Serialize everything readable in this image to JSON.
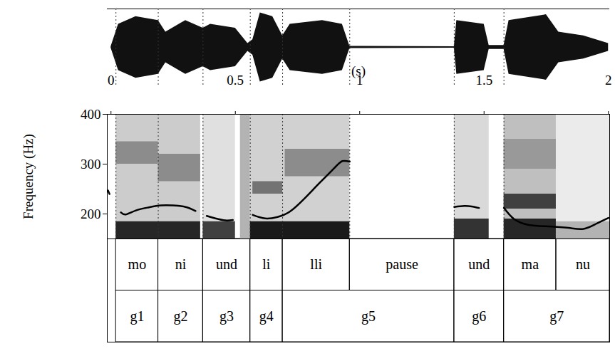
{
  "chart_data": {
    "type": "speech_annotation",
    "x_label": "(s)",
    "xlim": [
      -0.015,
      2.005
    ],
    "xticks": [
      0,
      0.5,
      1,
      1.5,
      2
    ],
    "y_label": "Frequency (Hz)",
    "ylim": [
      150,
      400
    ],
    "yticks": [
      200,
      300,
      400
    ],
    "waveform": {
      "ylim": [
        -1,
        1
      ],
      "x": [
        0.0,
        0.03,
        0.1,
        0.19,
        0.22,
        0.3,
        0.37,
        0.4,
        0.5,
        0.55,
        0.57,
        0.6,
        0.65,
        0.69,
        0.72,
        0.85,
        0.93,
        0.96,
        1.38,
        1.39,
        1.5,
        1.52,
        1.58,
        1.6,
        1.75,
        1.8,
        1.9,
        2.0
      ],
      "upper": [
        0.02,
        0.6,
        0.8,
        0.7,
        0.4,
        0.7,
        0.5,
        0.6,
        0.5,
        0.1,
        0.2,
        0.9,
        0.8,
        0.3,
        0.6,
        0.7,
        0.6,
        0.03,
        0.02,
        0.7,
        0.6,
        0.05,
        0.05,
        0.7,
        0.85,
        0.4,
        0.3,
        0.1
      ],
      "lower": [
        -0.02,
        -0.6,
        -0.8,
        -0.7,
        -0.4,
        -0.7,
        -0.5,
        -0.6,
        -0.5,
        -0.1,
        -0.2,
        -0.9,
        -0.8,
        -0.3,
        -0.6,
        -0.7,
        -0.6,
        -0.03,
        -0.02,
        -0.7,
        -0.6,
        -0.05,
        -0.05,
        -0.7,
        -0.85,
        -0.4,
        -0.3,
        -0.1
      ]
    },
    "spectrogram": {
      "intensity_lim": [
        0,
        1
      ],
      "cells": [
        {
          "x1": 0.02,
          "x2": 0.36,
          "y1": 150,
          "y2": 185,
          "intensity": 0.85
        },
        {
          "x1": 0.02,
          "x2": 0.36,
          "y1": 185,
          "y2": 400,
          "intensity": 0.2
        },
        {
          "x1": 0.02,
          "x2": 0.19,
          "y1": 300,
          "y2": 345,
          "intensity": 0.45
        },
        {
          "x1": 0.19,
          "x2": 0.36,
          "y1": 265,
          "y2": 320,
          "intensity": 0.45
        },
        {
          "x1": 0.37,
          "x2": 0.5,
          "y1": 150,
          "y2": 185,
          "intensity": 0.75
        },
        {
          "x1": 0.37,
          "x2": 0.5,
          "y1": 185,
          "y2": 400,
          "intensity": 0.12
        },
        {
          "x1": 0.52,
          "x2": 0.56,
          "y1": 150,
          "y2": 400,
          "intensity": 0.3
        },
        {
          "x1": 0.56,
          "x2": 0.96,
          "y1": 150,
          "y2": 185,
          "intensity": 0.9
        },
        {
          "x1": 0.56,
          "x2": 0.96,
          "y1": 185,
          "y2": 400,
          "intensity": 0.18
        },
        {
          "x1": 0.57,
          "x2": 0.69,
          "y1": 240,
          "y2": 265,
          "intensity": 0.55
        },
        {
          "x1": 0.7,
          "x2": 0.96,
          "y1": 275,
          "y2": 330,
          "intensity": 0.45
        },
        {
          "x1": 1.38,
          "x2": 1.52,
          "y1": 150,
          "y2": 190,
          "intensity": 0.8
        },
        {
          "x1": 1.38,
          "x2": 1.52,
          "y1": 190,
          "y2": 400,
          "intensity": 0.15
        },
        {
          "x1": 1.58,
          "x2": 1.79,
          "y1": 150,
          "y2": 190,
          "intensity": 0.85
        },
        {
          "x1": 1.58,
          "x2": 1.79,
          "y1": 190,
          "y2": 400,
          "intensity": 0.25
        },
        {
          "x1": 1.58,
          "x2": 1.79,
          "y1": 210,
          "y2": 240,
          "intensity": 0.75
        },
        {
          "x1": 1.58,
          "x2": 1.79,
          "y1": 290,
          "y2": 350,
          "intensity": 0.4
        },
        {
          "x1": 1.79,
          "x2": 2.005,
          "y1": 150,
          "y2": 185,
          "intensity": 0.3
        },
        {
          "x1": 1.79,
          "x2": 2.005,
          "y1": 185,
          "y2": 400,
          "intensity": 0.08
        }
      ]
    },
    "f0": {
      "color": "#000000",
      "segments": [
        {
          "x": [
            -0.012,
            -0.006
          ],
          "y": [
            247,
            240
          ]
        },
        {
          "x": [
            0.04,
            0.06,
            0.1,
            0.15,
            0.2,
            0.25,
            0.3,
            0.34
          ],
          "y": [
            203,
            199,
            207,
            213,
            217,
            217,
            214,
            206
          ]
        },
        {
          "x": [
            0.385,
            0.42,
            0.46,
            0.49
          ],
          "y": [
            196,
            191,
            187,
            188
          ]
        },
        {
          "x": [
            0.57,
            0.62,
            0.67,
            0.72,
            0.78,
            0.84,
            0.9,
            0.93,
            0.96
          ],
          "y": [
            198,
            191,
            194,
            205,
            232,
            263,
            293,
            306,
            305
          ]
        },
        {
          "x": [
            1.38,
            1.42,
            1.45,
            1.48
          ],
          "y": [
            214,
            216,
            215,
            212
          ]
        },
        {
          "x": [
            1.58,
            1.62,
            1.68,
            1.76,
            1.84,
            1.9,
            1.95,
            2.0
          ],
          "y": [
            212,
            190,
            178,
            175,
            172,
            170,
            180,
            192
          ]
        }
      ]
    },
    "boundaries": [
      0.02,
      0.19,
      0.37,
      0.56,
      0.69,
      0.96,
      1.38,
      1.58
    ],
    "tiers": [
      {
        "intervals": [
          {
            "label": "mo",
            "start": 0.02,
            "end": 0.19
          },
          {
            "label": "ni",
            "start": 0.19,
            "end": 0.37
          },
          {
            "label": "und",
            "start": 0.37,
            "end": 0.56
          },
          {
            "label": "li",
            "start": 0.56,
            "end": 0.69
          },
          {
            "label": "lli",
            "start": 0.69,
            "end": 0.96
          },
          {
            "label": "pause",
            "start": 0.96,
            "end": 1.38
          },
          {
            "label": "und",
            "start": 1.38,
            "end": 1.58
          },
          {
            "label": "ma",
            "start": 1.58,
            "end": 1.79
          },
          {
            "label": "nu",
            "start": 1.79,
            "end": 2.005
          }
        ]
      },
      {
        "intervals": [
          {
            "label": "g1",
            "start": 0.02,
            "end": 0.19
          },
          {
            "label": "g2",
            "start": 0.19,
            "end": 0.37
          },
          {
            "label": "g3",
            "start": 0.37,
            "end": 0.56
          },
          {
            "label": "g4",
            "start": 0.56,
            "end": 0.69
          },
          {
            "label": "g5",
            "start": 0.69,
            "end": 1.38
          },
          {
            "label": "g6",
            "start": 1.38,
            "end": 1.58
          },
          {
            "label": "g7",
            "start": 1.58,
            "end": 2.005
          }
        ]
      }
    ]
  }
}
